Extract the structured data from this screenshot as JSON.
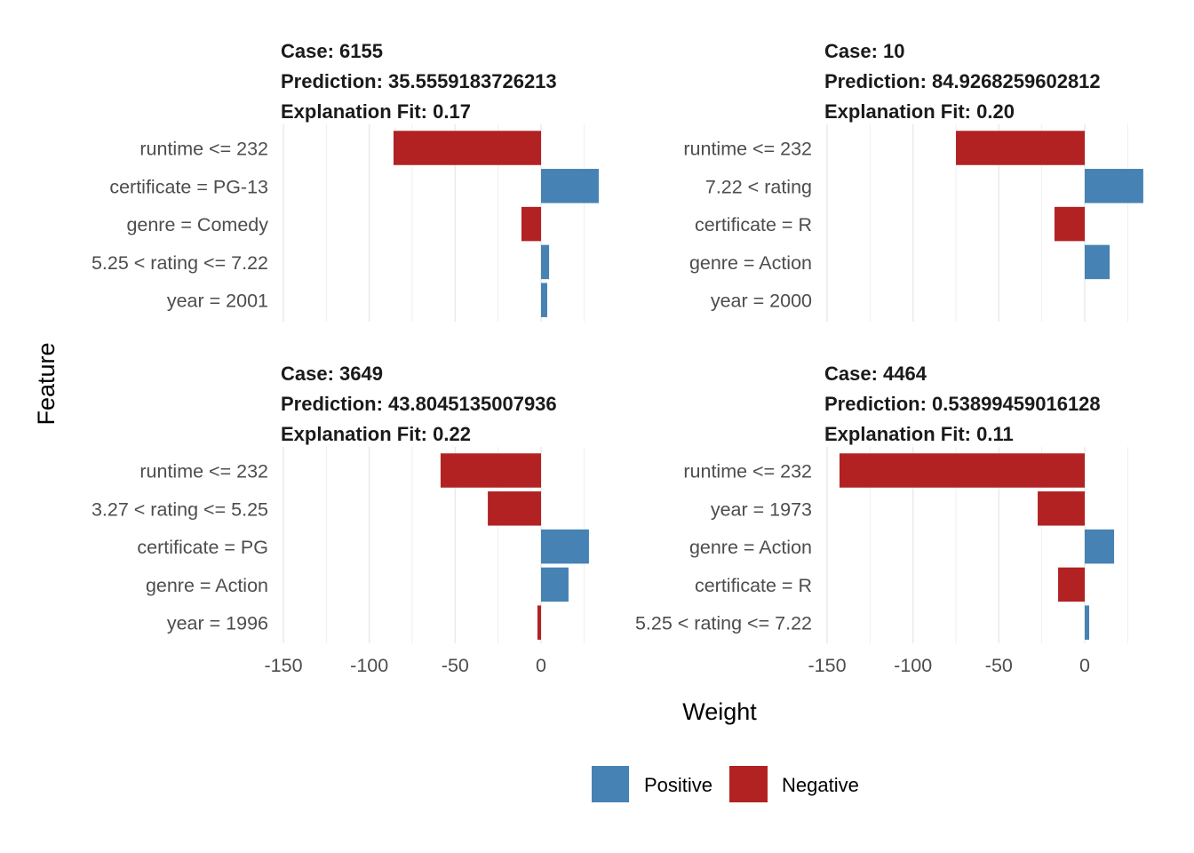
{
  "chart_data": {
    "type": "bar",
    "orientation": "horizontal",
    "facet_layout": "2x2",
    "xlabel": "Weight",
    "ylabel": "Feature",
    "xlim": [
      -150,
      35
    ],
    "x_ticks": [
      -150,
      -100,
      -50,
      0
    ],
    "x_tick_labels": [
      "-150",
      "-100",
      "-50",
      "0"
    ],
    "grid": true,
    "legend": {
      "placement": "bottom",
      "entries": [
        {
          "label": "Positive",
          "color": "#4682b4"
        },
        {
          "label": "Negative",
          "color": "#b22222"
        }
      ]
    },
    "panels": [
      {
        "case_label": "Case: 6155",
        "prediction_label": "Prediction: 35.5559183726213",
        "fit_label": "Explanation Fit: 0.17",
        "features": [
          "runtime <= 232",
          "certificate = PG-13",
          "genre = Comedy",
          "5.25 < rating <= 7.22",
          "year = 2001"
        ],
        "weights": [
          -85.9,
          33.6,
          -11.4,
          4.7,
          3.6
        ]
      },
      {
        "case_label": "Case: 10",
        "prediction_label": "Prediction: 84.9268259602812",
        "fit_label": "Explanation Fit: 0.20",
        "features": [
          "runtime <= 232",
          "7.22 < rating",
          "certificate = R",
          "genre = Action",
          "year = 2000"
        ],
        "weights": [
          -75.0,
          34.1,
          -17.6,
          14.5,
          0.0
        ]
      },
      {
        "case_label": "Case: 3649",
        "prediction_label": "Prediction: 43.8045135007936",
        "fit_label": "Explanation Fit: 0.22",
        "features": [
          "runtime <= 232",
          "3.27 < rating <= 5.25",
          "certificate = PG",
          "genre = Action",
          "year = 1996"
        ],
        "weights": [
          -58.5,
          -31.0,
          27.9,
          16.0,
          -2.1
        ]
      },
      {
        "case_label": "Case: 4464",
        "prediction_label": "Prediction: 0.53899459016128",
        "fit_label": "Explanation Fit: 0.11",
        "features": [
          "runtime <= 232",
          "year = 1973",
          "genre = Action",
          "certificate = R",
          "5.25 < rating <= 7.22"
        ],
        "weights": [
          -142.8,
          -27.4,
          17.1,
          -15.5,
          2.6
        ]
      }
    ]
  }
}
